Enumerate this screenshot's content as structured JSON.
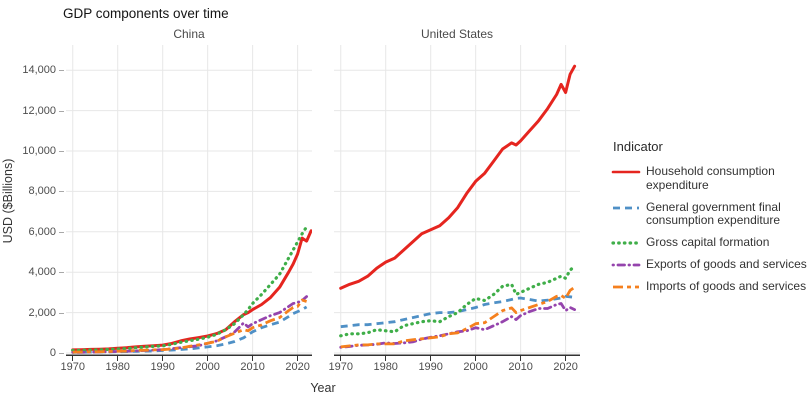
{
  "chart_data": {
    "type": "line",
    "title": "GDP components over time",
    "xlabel": "Year",
    "ylabel": "USD ($Billions)",
    "legend_title": "Indicator",
    "legend_position": "right",
    "grid": true,
    "ylim": [
      0,
      14600
    ],
    "xlim": [
      1968,
      2023
    ],
    "yticks": [
      {
        "v": 0,
        "label": "0"
      },
      {
        "v": 2000,
        "label": "2,000"
      },
      {
        "v": 4000,
        "label": "4,000"
      },
      {
        "v": 6000,
        "label": "6,000"
      },
      {
        "v": 8000,
        "label": "8,000"
      },
      {
        "v": 10000,
        "label": "10,000"
      },
      {
        "v": 12000,
        "label": "12,000"
      },
      {
        "v": 14000,
        "label": "14,000"
      }
    ],
    "xticks": [
      {
        "v": 1970,
        "label": "1970"
      },
      {
        "v": 1980,
        "label": "1980"
      },
      {
        "v": 1990,
        "label": "1990"
      },
      {
        "v": 2000,
        "label": "2000"
      },
      {
        "v": 2010,
        "label": "2010"
      },
      {
        "v": 2020,
        "label": "2020"
      }
    ],
    "x": [
      1970,
      1972,
      1974,
      1976,
      1978,
      1980,
      1982,
      1984,
      1986,
      1988,
      1990,
      1992,
      1994,
      1996,
      1998,
      2000,
      2002,
      2004,
      2006,
      2008,
      2009,
      2010,
      2012,
      2014,
      2016,
      2018,
      2019,
      2020,
      2021,
      2022,
      2023
    ],
    "indicators": [
      {
        "name": "Household consumption expenditure",
        "color": "#e5251f",
        "style": "solid"
      },
      {
        "name": "General government final consumption expenditure",
        "color": "#4f90c6",
        "style": "dashed"
      },
      {
        "name": "Gross capital formation",
        "color": "#3fae49",
        "style": "dotted"
      },
      {
        "name": "Exports of goods and services",
        "color": "#9544ad",
        "style": "dashdot"
      },
      {
        "name": "Imports of goods and services",
        "color": "#f5801e",
        "style": "longdash"
      }
    ],
    "facets": [
      {
        "label": "China",
        "series": [
          [
            150,
            160,
            175,
            185,
            200,
            230,
            260,
            300,
            330,
            360,
            390,
            470,
            600,
            690,
            760,
            840,
            960,
            1150,
            1550,
            1900,
            2000,
            2150,
            2400,
            2750,
            3250,
            4000,
            4400,
            4900,
            5690,
            5540,
            6050
          ],
          [
            35,
            40,
            45,
            45,
            55,
            65,
            70,
            85,
            95,
            105,
            120,
            140,
            170,
            200,
            250,
            300,
            360,
            450,
            570,
            750,
            900,
            1050,
            1250,
            1400,
            1530,
            1800,
            1950,
            2050,
            2150,
            2280,
            null
          ],
          [
            120,
            130,
            145,
            150,
            175,
            195,
            215,
            260,
            295,
            330,
            350,
            430,
            530,
            610,
            680,
            780,
            920,
            1150,
            1450,
            1900,
            2150,
            2450,
            2900,
            3400,
            3900,
            4700,
            5100,
            5500,
            5900,
            6250,
            null
          ],
          [
            30,
            35,
            45,
            50,
            60,
            80,
            90,
            105,
            120,
            140,
            165,
            210,
            260,
            310,
            360,
            480,
            600,
            800,
            1040,
            1485,
            1290,
            1450,
            1650,
            1850,
            2000,
            2300,
            2450,
            2500,
            2600,
            2790,
            null
          ],
          [
            45,
            50,
            60,
            60,
            75,
            90,
            95,
            125,
            135,
            150,
            160,
            200,
            240,
            330,
            400,
            480,
            580,
            800,
            980,
            1150,
            1100,
            1250,
            1390,
            1600,
            1750,
            2100,
            2250,
            2300,
            2620,
            2550,
            null
          ]
        ]
      },
      {
        "label": "United States",
        "series": [
          [
            3200,
            3400,
            3550,
            3800,
            4200,
            4500,
            4700,
            5100,
            5500,
            5900,
            6100,
            6300,
            6700,
            7200,
            7900,
            8500,
            8900,
            9500,
            10100,
            10400,
            10300,
            10500,
            11000,
            11500,
            12100,
            12800,
            13300,
            12900,
            13800,
            14200,
            null
          ],
          [
            1300,
            1350,
            1400,
            1400,
            1450,
            1500,
            1550,
            1650,
            1750,
            1850,
            1950,
            2000,
            2000,
            2050,
            2150,
            2250,
            2400,
            2480,
            2550,
            2650,
            2700,
            2720,
            2650,
            2570,
            2620,
            2680,
            2720,
            2800,
            2780,
            2750,
            null
          ],
          [
            850,
            950,
            950,
            1000,
            1150,
            1100,
            1050,
            1350,
            1450,
            1550,
            1600,
            1550,
            1800,
            2000,
            2400,
            2700,
            2600,
            2900,
            3300,
            3400,
            2900,
            3000,
            3200,
            3400,
            3500,
            3700,
            3800,
            3700,
            4100,
            4300,
            null
          ],
          [
            280,
            320,
            380,
            400,
            430,
            500,
            470,
            500,
            550,
            680,
            780,
            850,
            950,
            1050,
            1100,
            1250,
            1150,
            1350,
            1550,
            1800,
            1650,
            1850,
            2050,
            2200,
            2200,
            2400,
            2450,
            2100,
            2250,
            2150,
            null
          ],
          [
            300,
            350,
            400,
            400,
            450,
            450,
            450,
            600,
            650,
            700,
            750,
            800,
            950,
            1000,
            1200,
            1450,
            1500,
            1800,
            2100,
            2230,
            2000,
            2100,
            2250,
            2400,
            2550,
            2800,
            2850,
            2700,
            3100,
            3250,
            null
          ]
        ]
      }
    ]
  }
}
